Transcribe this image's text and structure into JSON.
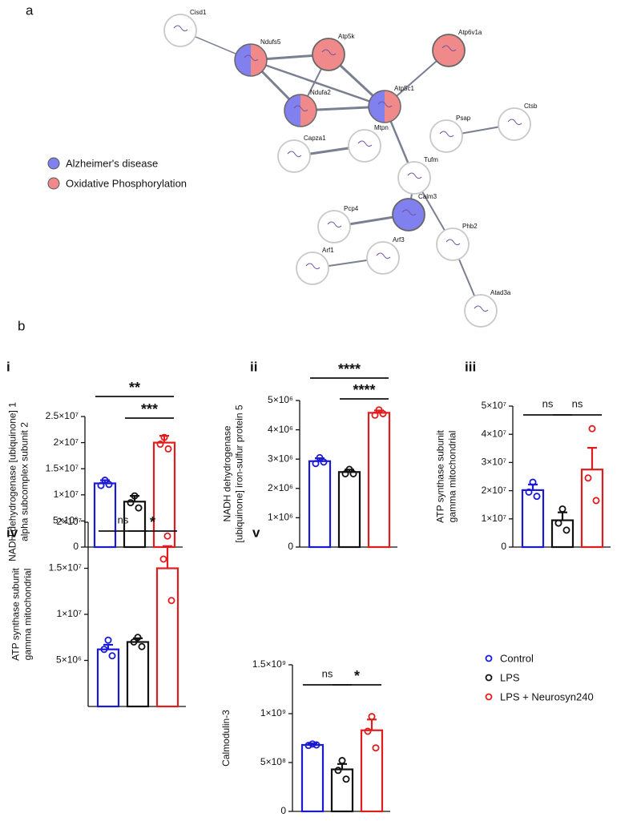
{
  "panel_a": "a",
  "panel_b": "b",
  "network": {
    "legend": [
      {
        "name": "Alzheimer's disease",
        "color": "#8080ee"
      },
      {
        "name": "Oxidative Phosphorylation",
        "color": "#f08a8a"
      }
    ],
    "nodes": [
      {
        "label": "Cisd1",
        "groups": []
      },
      {
        "label": "Ndufs5",
        "groups": [
          0,
          1
        ]
      },
      {
        "label": "Atp5k",
        "groups": [
          1
        ]
      },
      {
        "label": "Atp6v1a",
        "groups": [
          1
        ]
      },
      {
        "label": "Ndufa2",
        "groups": [
          0,
          1
        ]
      },
      {
        "label": "Atp5c1",
        "groups": [
          0,
          1
        ]
      },
      {
        "label": "Psap",
        "groups": []
      },
      {
        "label": "Ctsb",
        "groups": []
      },
      {
        "label": "Capza1",
        "groups": []
      },
      {
        "label": "Mtpn",
        "groups": []
      },
      {
        "label": "Tufm",
        "groups": []
      },
      {
        "label": "Calm3",
        "groups": [
          0
        ]
      },
      {
        "label": "Pcp4",
        "groups": []
      },
      {
        "label": "Phb2",
        "groups": []
      },
      {
        "label": "Arf1",
        "groups": []
      },
      {
        "label": "Arf3",
        "groups": []
      },
      {
        "label": "Atad3a",
        "groups": []
      }
    ]
  },
  "legend": [
    {
      "name": "Control",
      "color": "#1a1ad6"
    },
    {
      "name": "LPS",
      "color": "#111111"
    },
    {
      "name": "LPS + Neurosyn240",
      "color": "#e01c1c"
    }
  ],
  "chart_data": [
    {
      "type": "bar",
      "panel": "i",
      "ylabel": [
        "NADH dehydrogenase [ubiquinone] 1",
        "alpha subcomplex subunit 2"
      ],
      "ylim": [
        0,
        25000000
      ],
      "yticks": [
        0,
        {
          "value": 5000000,
          "label": "5×10⁶"
        },
        {
          "value": 10000000,
          "label": "1×10⁷"
        },
        {
          "value": 15000000,
          "label": "1.5×10⁷"
        },
        {
          "value": 20000000,
          "label": "2×10⁷"
        },
        {
          "value": 25000000,
          "label": "2.5×10⁷"
        }
      ],
      "values": [
        12200000,
        8700000,
        20000000
      ],
      "errors": [
        600000,
        1100000,
        1300000
      ],
      "points": [
        [
          12800000,
          11800000,
          12000000
        ],
        [
          9800000,
          8500000,
          7500000
        ],
        [
          21000000,
          19700000,
          18800000
        ]
      ],
      "significance": [
        {
          "from": 0,
          "to": 2,
          "label": "**"
        },
        {
          "from": 1,
          "to": 2,
          "label": "***"
        }
      ]
    },
    {
      "type": "bar",
      "panel": "ii",
      "ylabel": [
        "NADH dehydrogenase",
        "[ubiquinone] iron-sulfur protein 5"
      ],
      "ylim": [
        0,
        5000000
      ],
      "yticks": [
        0,
        {
          "value": 1000000,
          "label": "1×10⁶"
        },
        {
          "value": 2000000,
          "label": "2×10⁶"
        },
        {
          "value": 3000000,
          "label": "3×10⁶"
        },
        {
          "value": 4000000,
          "label": "4×10⁶"
        },
        {
          "value": 5000000,
          "label": "5×10⁶"
        }
      ],
      "values": [
        2930000,
        2560000,
        4580000
      ],
      "errors": [
        100000,
        80000,
        80000
      ],
      "points": [
        [
          3050000,
          2850000,
          2900000
        ],
        [
          2650000,
          2500000,
          2500000
        ],
        [
          4680000,
          4500000,
          4550000
        ]
      ],
      "significance": [
        {
          "from": 0,
          "to": 2,
          "label": "****"
        },
        {
          "from": 1,
          "to": 2,
          "label": "****"
        }
      ]
    },
    {
      "type": "bar",
      "panel": "iii",
      "ylabel": [
        "ATP synthase subunit",
        "gamma mitochondrial"
      ],
      "ylim": [
        0,
        50000000
      ],
      "yticks": [
        0,
        {
          "value": 10000000,
          "label": "1×10⁷"
        },
        {
          "value": 20000000,
          "label": "2×10⁷"
        },
        {
          "value": 30000000,
          "label": "3×10⁷"
        },
        {
          "value": 40000000,
          "label": "4×10⁷"
        },
        {
          "value": 50000000,
          "label": "5×10⁷"
        }
      ],
      "values": [
        20200000,
        9500000,
        27500000
      ],
      "errors": [
        2000000,
        2800000,
        7700000
      ],
      "points": [
        [
          23000000,
          19500000,
          18000000
        ],
        [
          13500000,
          8500000,
          6000000
        ],
        [
          42000000,
          24500000,
          16500000
        ]
      ],
      "significance": [
        {
          "from": 0,
          "to": 1,
          "label": "ns"
        },
        {
          "from": 1,
          "to": 2,
          "label": "ns"
        }
      ]
    },
    {
      "type": "bar",
      "panel": "iv",
      "ylabel": [
        "ATP synthase subunit",
        "gamma mitochondrial"
      ],
      "ylim": [
        0,
        20000000
      ],
      "yticks": [
        {
          "value": 5000000,
          "label": "5×10⁶"
        },
        {
          "value": 10000000,
          "label": "1×10⁷"
        },
        {
          "value": 15000000,
          "label": "1.5×10⁷"
        },
        {
          "value": 20000000,
          "label": "2×10⁷"
        }
      ],
      "values": [
        6200000,
        7000000,
        15000000
      ],
      "errors": [
        500000,
        400000,
        2400000
      ],
      "points": [
        [
          7200000,
          6200000,
          5500000
        ],
        [
          7500000,
          7000000,
          6500000
        ],
        [
          18500000,
          16000000,
          11500000
        ]
      ],
      "significance": [
        {
          "from": 0,
          "to": 1,
          "label": "ns"
        },
        {
          "from": 1,
          "to": 2,
          "label": "*"
        }
      ]
    },
    {
      "type": "bar",
      "panel": "v",
      "ylabel": [
        "Calmodulin-3"
      ],
      "ylim": [
        0,
        1500000000
      ],
      "yticks": [
        0,
        {
          "value": 500000000,
          "label": "5×10⁸"
        },
        {
          "value": 1000000000,
          "label": "1×10⁹"
        },
        {
          "value": 1500000000,
          "label": "1.5×10⁹"
        }
      ],
      "values": [
        680000000,
        430000000,
        830000000
      ],
      "errors": [
        15000000,
        55000000,
        110000000
      ],
      "points": [
        [
          690000000,
          675000000,
          680000000
        ],
        [
          520000000,
          420000000,
          330000000
        ],
        [
          970000000,
          820000000,
          650000000
        ]
      ],
      "significance": [
        {
          "from": 0,
          "to": 1,
          "label": "ns"
        },
        {
          "from": 1,
          "to": 2,
          "label": "*"
        }
      ]
    }
  ]
}
